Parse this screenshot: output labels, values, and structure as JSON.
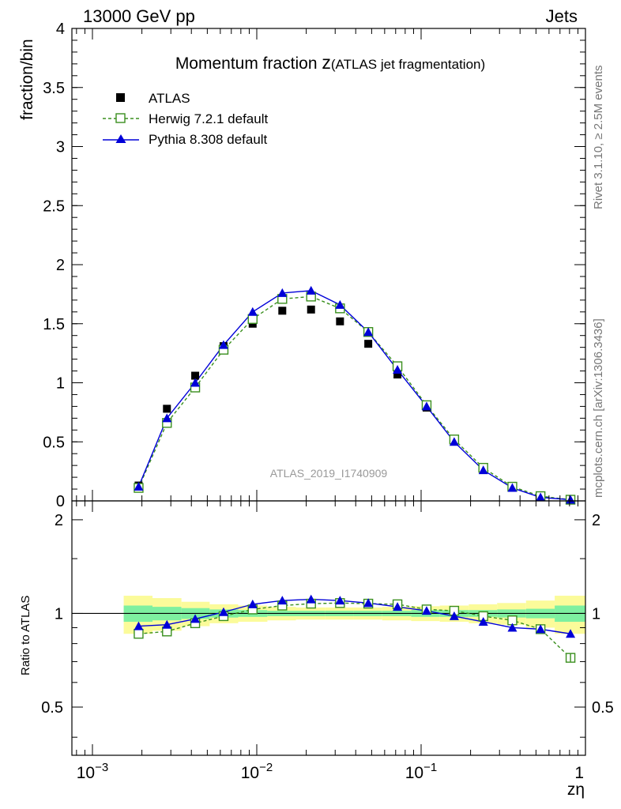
{
  "header": {
    "left": "13000 GeV pp",
    "right": "Jets"
  },
  "side_labels": {
    "rivet": "Rivet 3.1.10, ≥ 2.5M events",
    "mcplots": "mcplots.cern.ch [arXiv:1306.3436]"
  },
  "colors": {
    "atlas": "#000000",
    "herwig": "#3a8f1e",
    "pythia": "#0000d8",
    "band_inner": "#7ef0a0",
    "band_outer": "#fbfb9a"
  },
  "chart_data": [
    {
      "type": "scatter",
      "panel": "main",
      "title_main": "Momentum fraction ",
      "title_var": "z",
      "title_sub": "(ATLAS jet fragmentation)",
      "ylabel": "fraction/bin",
      "xlabel": "zη",
      "watermark": "ATLAS_2019_I1740909",
      "x_scale": "log",
      "xlim": [
        0.00075,
        1.0
      ],
      "ylim": [
        0,
        4
      ],
      "x_tick_labels": [
        "10",
        "10",
        "10",
        "1"
      ],
      "x_tick_exponents": [
        "−3",
        "−2",
        "−1",
        ""
      ],
      "y_tick_labels": [
        "0",
        "0.5",
        "1",
        "1.5",
        "2",
        "2.5",
        "3",
        "3.5",
        "4"
      ],
      "legend_position": "top-left",
      "x": [
        0.00191,
        0.00284,
        0.00422,
        0.00628,
        0.00944,
        0.0143,
        0.0214,
        0.0321,
        0.0477,
        0.0718,
        0.108,
        0.159,
        0.239,
        0.359,
        0.533,
        0.811
      ],
      "series": [
        {
          "name": "ATLAS",
          "style": "data",
          "values": [
            0.13,
            0.78,
            1.06,
            1.31,
            1.5,
            1.61,
            1.62,
            1.52,
            1.33,
            1.07,
            0.79,
            0.51,
            0.28,
            0.12,
            0.04,
            0.01
          ]
        },
        {
          "name": "Herwig 7.2.1 default",
          "style": "open-square-dashed",
          "values": [
            0.11,
            0.66,
            0.96,
            1.28,
            1.54,
            1.71,
            1.73,
            1.63,
            1.43,
            1.14,
            0.81,
            0.52,
            0.28,
            0.12,
            0.04,
            0.01
          ]
        },
        {
          "name": "Pythia 8.308 default",
          "style": "triangle-solid",
          "values": [
            0.12,
            0.7,
            1.0,
            1.32,
            1.6,
            1.76,
            1.78,
            1.66,
            1.43,
            1.11,
            0.8,
            0.5,
            0.26,
            0.11,
            0.03,
            0.01
          ]
        }
      ]
    },
    {
      "type": "line",
      "panel": "ratio",
      "ylabel": "Ratio to ATLAS",
      "x_scale": "log",
      "xlim": [
        0.00075,
        1.0
      ],
      "ylim": [
        0.35,
        2.3
      ],
      "y_scale": "log",
      "y_tick_labels": [
        "0.5",
        "1",
        "2"
      ],
      "x": [
        0.00191,
        0.00284,
        0.00422,
        0.00628,
        0.00944,
        0.0143,
        0.0214,
        0.0321,
        0.0477,
        0.0718,
        0.108,
        0.159,
        0.239,
        0.359,
        0.533,
        0.811
      ],
      "band_edges": [
        0.00155,
        0.00232,
        0.00348,
        0.00517,
        0.00771,
        0.0116,
        0.0173,
        0.026,
        0.039,
        0.058,
        0.087,
        0.13,
        0.195,
        0.29,
        0.435,
        0.65,
        1.0
      ],
      "band_inner": [
        0.06,
        0.05,
        0.04,
        0.03,
        0.025,
        0.02,
        0.02,
        0.02,
        0.02,
        0.02,
        0.025,
        0.025,
        0.025,
        0.03,
        0.035,
        0.06
      ],
      "band_outer": [
        0.14,
        0.12,
        0.09,
        0.07,
        0.06,
        0.05,
        0.045,
        0.045,
        0.045,
        0.05,
        0.055,
        0.06,
        0.07,
        0.08,
        0.1,
        0.14
      ],
      "series": [
        {
          "name": "Herwig 7.2.1 default",
          "values": [
            0.86,
            0.875,
            0.93,
            0.98,
            1.03,
            1.06,
            1.075,
            1.08,
            1.075,
            1.07,
            1.03,
            1.02,
            0.98,
            0.95,
            0.89,
            0.72
          ]
        },
        {
          "name": "Pythia 8.308 default",
          "values": [
            0.91,
            0.92,
            0.96,
            1.01,
            1.07,
            1.1,
            1.11,
            1.1,
            1.08,
            1.05,
            1.02,
            0.98,
            0.94,
            0.9,
            0.89,
            0.86
          ]
        }
      ]
    }
  ]
}
